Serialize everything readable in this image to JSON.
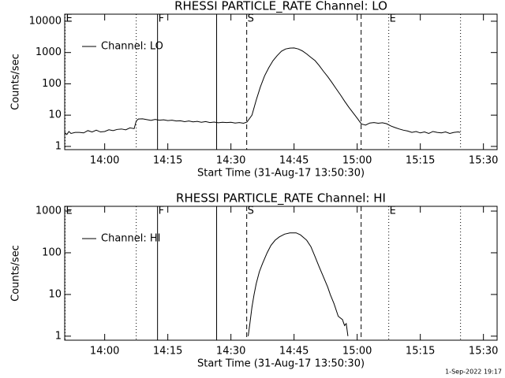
{
  "chart_data": [
    {
      "type": "line",
      "title": "RHESSI PARTICLE_RATE Channel: LO",
      "xlabel": "Start Time (31-Aug-17 13:50:30)",
      "ylabel": "Counts/sec",
      "xlim": [
        830.5,
        933.25
      ],
      "xticks": [
        {
          "value": 840,
          "label": "14:00"
        },
        {
          "value": 855,
          "label": "14:15"
        },
        {
          "value": 870,
          "label": "14:30"
        },
        {
          "value": 885,
          "label": "14:45"
        },
        {
          "value": 900,
          "label": "15:00"
        },
        {
          "value": 915,
          "label": "15:15"
        },
        {
          "value": 930,
          "label": "15:30"
        }
      ],
      "ylim": [
        0.79,
        16800
      ],
      "yticks": [
        1,
        10,
        100,
        1000,
        10000
      ],
      "log_y": true,
      "legend": "upper left",
      "markers": [
        {
          "x": 830.6,
          "style": "dotted",
          "label": "E"
        },
        {
          "x": 847.5,
          "style": "dotted"
        },
        {
          "x": 852.56,
          "style": "solid",
          "label": "F"
        },
        {
          "x": 866.6,
          "style": "solid"
        },
        {
          "x": 873.75,
          "style": "dashed",
          "label": "S"
        },
        {
          "x": 900.94,
          "style": "dashed"
        },
        {
          "x": 907.5,
          "style": "dotted",
          "label": "E"
        },
        {
          "x": 924.56,
          "style": "dotted"
        }
      ],
      "series": [
        {
          "name": "Channel: LO",
          "color": "#000000",
          "x": [
            830.5,
            831,
            831.5,
            832,
            833,
            834,
            835,
            836,
            837,
            838,
            839,
            840,
            841,
            842,
            843,
            844,
            845,
            846,
            847,
            847.5,
            848,
            849,
            850,
            851,
            852,
            853,
            854,
            855,
            856,
            857,
            858,
            859,
            860,
            861,
            862,
            863,
            864,
            865,
            866,
            867,
            868,
            869,
            870,
            871,
            872,
            873,
            873.8,
            874,
            875,
            876,
            877,
            878,
            879,
            880,
            881,
            882,
            883,
            884,
            885,
            886,
            887,
            888,
            889,
            890,
            891,
            892,
            893,
            894,
            895,
            896,
            897,
            898,
            899,
            900,
            901,
            902,
            903,
            904,
            905,
            906,
            907,
            908,
            909,
            910,
            911,
            912,
            913,
            914,
            915,
            916,
            917,
            918,
            919,
            920,
            921,
            922,
            923,
            924,
            924.5
          ],
          "values": [
            2.8,
            2.4,
            3,
            2.6,
            2.8,
            2.8,
            2.7,
            3.2,
            2.9,
            3.3,
            2.9,
            3,
            3.4,
            3.2,
            3.5,
            3.6,
            3.4,
            3.9,
            3.7,
            6.5,
            7.5,
            7.6,
            7.2,
            6.8,
            7.3,
            6.9,
            7.1,
            6.7,
            6.9,
            6.5,
            6.6,
            6.2,
            6.5,
            6.1,
            6.3,
            5.9,
            6.2,
            5.8,
            6,
            5.7,
            5.9,
            5.8,
            5.9,
            5.6,
            5.8,
            5.5,
            6,
            6.5,
            10,
            30,
            80,
            180,
            330,
            550,
            800,
            1100,
            1300,
            1380,
            1400,
            1300,
            1120,
            900,
            700,
            550,
            380,
            250,
            170,
            110,
            70,
            45,
            28,
            18,
            12,
            8,
            5.2,
            4.8,
            5.6,
            5.8,
            5.5,
            5.7,
            5.3,
            4.5,
            4,
            3.6,
            3.3,
            3.1,
            2.8,
            3,
            2.7,
            2.9,
            2.6,
            3,
            2.8,
            2.7,
            2.9,
            2.6,
            2.8,
            2.9,
            2.8
          ]
        }
      ]
    },
    {
      "type": "line",
      "title": "RHESSI PARTICLE_RATE Channel: HI",
      "xlabel": "Start Time (31-Aug-17 13:50:30)",
      "ylabel": "Counts/sec",
      "xlim": [
        830.5,
        933.25
      ],
      "xticks": [
        {
          "value": 840,
          "label": "14:00"
        },
        {
          "value": 855,
          "label": "14:15"
        },
        {
          "value": 870,
          "label": "14:30"
        },
        {
          "value": 885,
          "label": "14:45"
        },
        {
          "value": 900,
          "label": "15:00"
        },
        {
          "value": 915,
          "label": "15:15"
        },
        {
          "value": 930,
          "label": "15:30"
        }
      ],
      "ylim": [
        0.8,
        1300
      ],
      "yticks": [
        1,
        10,
        100,
        1000
      ],
      "log_y": true,
      "legend": "upper left",
      "markers": [
        {
          "x": 830.6,
          "style": "dotted",
          "label": "E"
        },
        {
          "x": 847.5,
          "style": "dotted"
        },
        {
          "x": 852.56,
          "style": "solid",
          "label": "F"
        },
        {
          "x": 866.6,
          "style": "solid"
        },
        {
          "x": 873.75,
          "style": "dashed",
          "label": "S"
        },
        {
          "x": 900.94,
          "style": "dashed"
        },
        {
          "x": 907.5,
          "style": "dotted",
          "label": "E"
        },
        {
          "x": 924.56,
          "style": "dotted"
        }
      ],
      "series": [
        {
          "name": "Channel: HI",
          "color": "#000000",
          "x": [
            874.1,
            874.5,
            875,
            875.5,
            876,
            876.75,
            877.5,
            878.6,
            879.5,
            880.5,
            881.5,
            882.75,
            884,
            885.5,
            886.5,
            888,
            889,
            890,
            891,
            891.75,
            893,
            893.6,
            894.5,
            895.5,
            896.5,
            897,
            897.4,
            897.8
          ],
          "values": [
            1,
            2,
            5,
            10,
            18,
            35,
            55,
            100,
            150,
            200,
            240,
            280,
            300,
            300,
            270,
            200,
            140,
            80,
            45,
            30,
            15,
            10,
            6,
            3,
            2.5,
            1.8,
            2,
            1
          ]
        }
      ]
    }
  ],
  "footer": "1-Sep-2022 19:17"
}
